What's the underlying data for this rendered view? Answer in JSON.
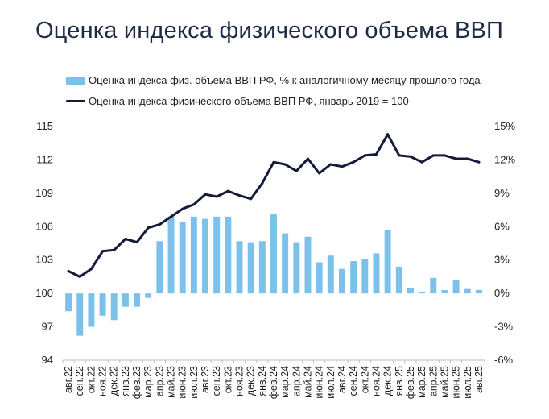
{
  "title": "Оценка индекса физического объема ВВП",
  "colors": {
    "bars": "#7cc1ea",
    "line": "#141a3a",
    "text": "#222222",
    "title": "#1f2a44"
  },
  "chart_data": {
    "type": "bar+line",
    "title": "Оценка индекса физического объема ВВП",
    "legend_position": "top",
    "grid": false,
    "categories": [
      "авг.22",
      "сен.22",
      "окт.22",
      "ноя.22",
      "дек.22",
      "янв.23",
      "фев.23",
      "мар.23",
      "апр.23",
      "май.23",
      "июн.23",
      "июл.23",
      "авг.23",
      "сен.23",
      "окт.23",
      "ноя.23",
      "дек.23",
      "янв.24",
      "фев.24",
      "мар.24",
      "апр.24",
      "май.24",
      "июн.24",
      "июл.24",
      "авг.24",
      "сен.24",
      "окт.24",
      "ноя.24",
      "дек.24",
      "янв.25",
      "фев.25",
      "мар.25",
      "апр.25",
      "май.25",
      "июн.25",
      "июл.25",
      "авг.25"
    ],
    "left_axis": {
      "min": 94,
      "max": 115,
      "ticks": [
        94,
        97,
        100,
        103,
        106,
        109,
        112,
        115
      ]
    },
    "right_axis": {
      "min": -6,
      "max": 15,
      "ticks": [
        "-6%",
        "-3%",
        "0%",
        "3%",
        "6%",
        "9%",
        "12%",
        "15%"
      ]
    },
    "series": [
      {
        "name": "Оценка индекса физ. объема ВВП РФ, % к аналогичному месяцу прошлого года",
        "type": "bar",
        "axis": "right",
        "values": [
          -1.6,
          -3.8,
          -3.0,
          -2.0,
          -2.4,
          -1.2,
          -1.2,
          -0.4,
          4.7,
          6.9,
          6.4,
          6.9,
          6.7,
          6.9,
          6.9,
          4.7,
          4.6,
          4.7,
          7.1,
          5.4,
          4.6,
          5.1,
          2.8,
          3.4,
          2.2,
          2.9,
          3.1,
          3.6,
          5.7,
          2.4,
          0.5,
          0.1,
          1.4,
          0.3,
          1.2,
          0.4,
          0.3
        ]
      },
      {
        "name": "Оценка индекса физического объема ВВП РФ, январь 2019 = 100",
        "type": "line",
        "axis": "left",
        "values": [
          102.0,
          101.5,
          102.2,
          103.8,
          103.9,
          104.9,
          104.6,
          105.9,
          106.2,
          106.9,
          107.6,
          108.0,
          108.9,
          108.7,
          109.2,
          108.8,
          108.5,
          109.9,
          111.8,
          111.6,
          111.0,
          112.1,
          110.8,
          111.6,
          111.4,
          111.8,
          112.4,
          112.5,
          114.3,
          112.4,
          112.3,
          111.8,
          112.4,
          112.4,
          112.1,
          112.1,
          111.8
        ]
      }
    ]
  }
}
